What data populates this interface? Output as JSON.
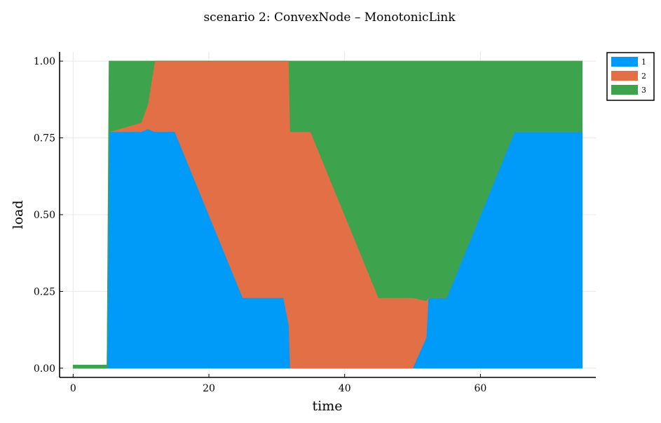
{
  "chart_data": {
    "type": "area",
    "stacked": true,
    "title": "scenario 2: ConvexNode – MonotonicLink",
    "xlabel": "time",
    "ylabel": "load",
    "xlim": [
      -2,
      77
    ],
    "ylim": [
      -0.03,
      1.03
    ],
    "xticks": [
      0,
      20,
      40,
      60
    ],
    "xtick_labels": [
      "0",
      "20",
      "40",
      "60"
    ],
    "yticks": [
      0,
      0.25,
      0.5,
      0.75,
      1.0
    ],
    "ytick_labels": [
      "0.00",
      "0.25",
      "0.50",
      "0.75",
      "1.00"
    ],
    "grid": true,
    "legend_position": "top-right",
    "x": [
      0,
      5,
      5.3,
      10,
      11,
      12,
      15,
      25,
      31,
      31.8,
      32,
      35,
      45,
      50,
      52,
      52.3,
      55,
      65,
      75
    ],
    "series": [
      {
        "name": "1",
        "color": "#009af9",
        "values": [
          0.0,
          0.0,
          0.77,
          0.77,
          0.78,
          0.77,
          0.77,
          0.23,
          0.23,
          0.14,
          0.0,
          0.0,
          0.0,
          0.0,
          0.1,
          0.23,
          0.23,
          0.77,
          0.77
        ]
      },
      {
        "name": "2",
        "color": "#e26f46",
        "values": [
          0.0,
          0.0,
          0.0,
          0.03,
          0.08,
          0.23,
          0.23,
          0.77,
          0.77,
          0.86,
          0.77,
          0.77,
          0.23,
          0.23,
          0.12,
          0.0,
          0.0,
          0.0,
          0.0
        ]
      },
      {
        "name": "3",
        "color": "#3da44d",
        "values": [
          0.01,
          0.01,
          0.23,
          0.2,
          0.14,
          0.0,
          0.0,
          0.0,
          0.0,
          0.0,
          0.23,
          0.23,
          0.77,
          0.77,
          0.78,
          0.77,
          0.77,
          0.23,
          0.23
        ]
      }
    ]
  }
}
